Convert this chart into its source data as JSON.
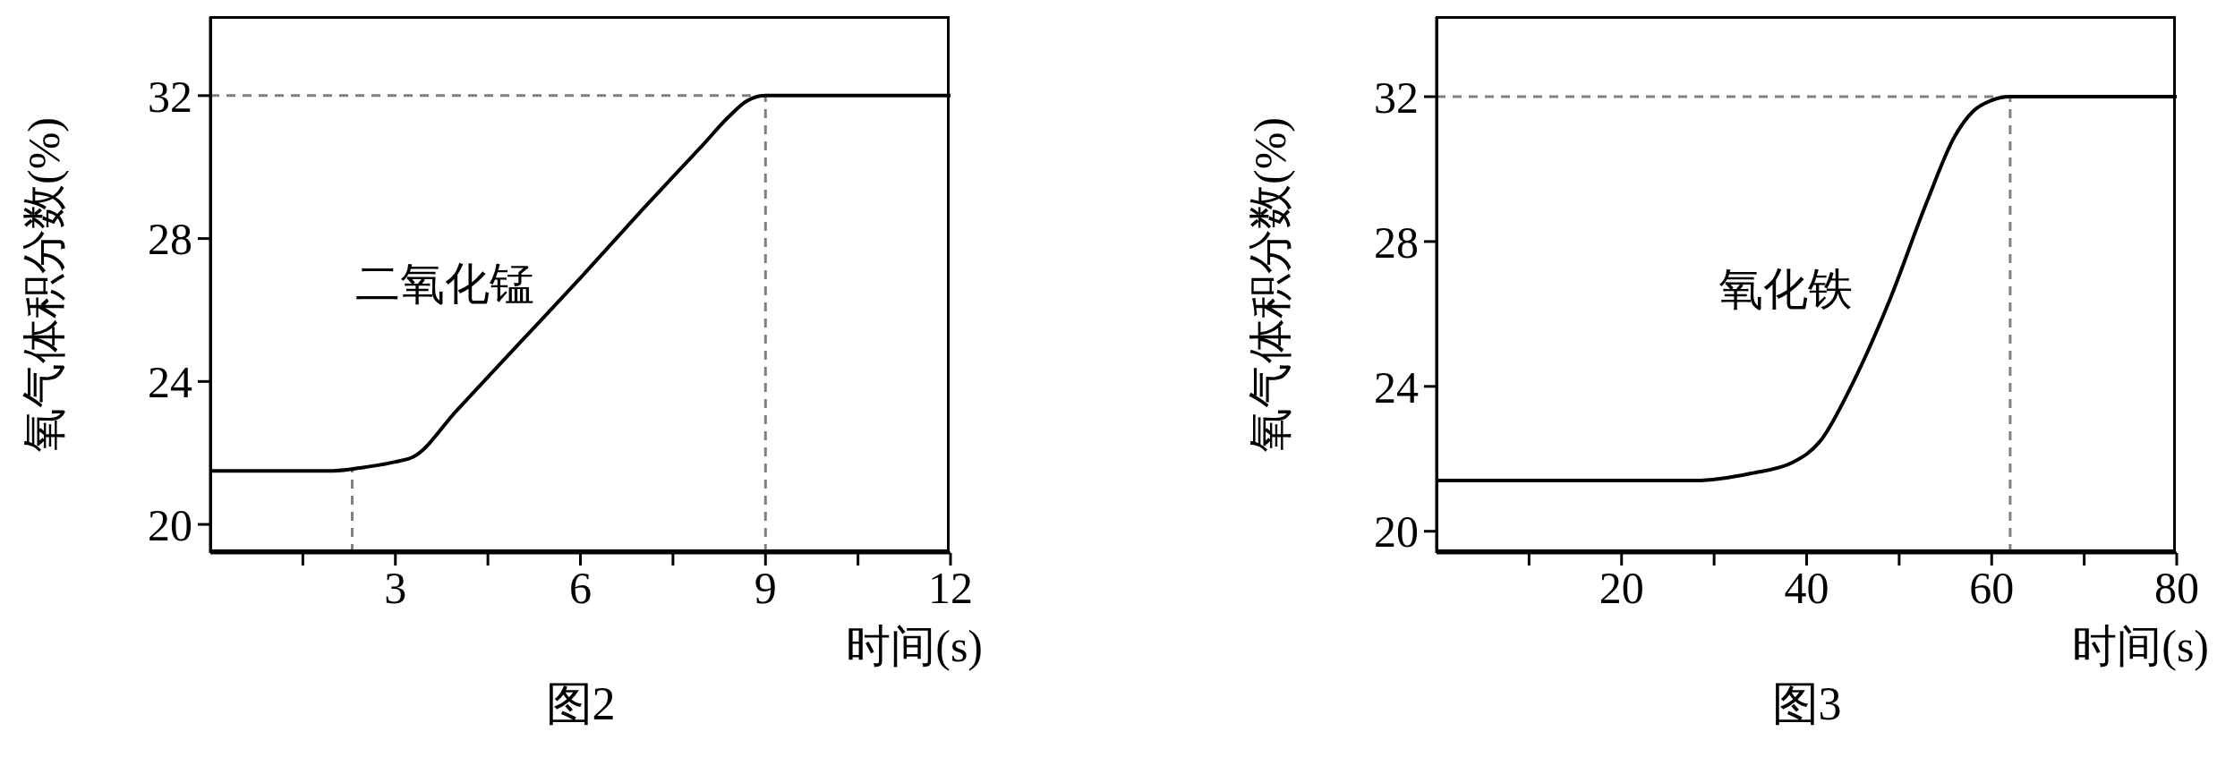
{
  "chart_data": [
    {
      "type": "line",
      "title": "图2",
      "xlabel": "时间(s)",
      "ylabel": "氧气体积分数(%)",
      "xlim": [
        0,
        12
      ],
      "ylim": [
        19.2,
        34.2
      ],
      "xticks": [
        {
          "value": 1.5,
          "label": null
        },
        3,
        {
          "value": 4.5,
          "label": null
        },
        6,
        {
          "value": 7.5,
          "label": null
        },
        9,
        {
          "value": 10.5,
          "label": null
        },
        12
      ],
      "yticks": [
        20,
        24,
        28,
        32
      ],
      "marker": "none",
      "line_style": "solid",
      "series": [
        {
          "name": "二氧化锰",
          "color": "#000000",
          "x": [
            0,
            1,
            2,
            2.5,
            3,
            3.3,
            4,
            5,
            6,
            7,
            8,
            8.4,
            8.7,
            9,
            12
          ],
          "values": [
            21.5,
            21.5,
            21.5,
            21.6,
            21.75,
            21.9,
            23.2,
            25.05,
            26.9,
            28.8,
            30.65,
            31.4,
            31.85,
            32,
            32
          ]
        }
      ],
      "ref_lines": [
        {
          "axis": "y",
          "value": 32,
          "color": "#808080",
          "line_style": "dashed"
        },
        {
          "axis": "x",
          "value": 9,
          "color": "#808080",
          "line_style": "dashed"
        },
        {
          "axis": "x",
          "value": 2.3,
          "color": "#808080",
          "line_style": "dashed"
        }
      ]
    },
    {
      "type": "line",
      "title": "图3",
      "xlabel": "时间(s)",
      "ylabel": "氧气体积分数(%)",
      "xlim": [
        0,
        80
      ],
      "ylim": [
        19.4,
        34.2
      ],
      "xticks": [
        {
          "value": 10,
          "label": null
        },
        20,
        {
          "value": 30,
          "label": null
        },
        40,
        {
          "value": 50,
          "label": null
        },
        60,
        {
          "value": 70,
          "label": null
        },
        80
      ],
      "yticks": [
        20,
        24,
        28,
        32
      ],
      "marker": "none",
      "line_style": "solid",
      "series": [
        {
          "name": "氧化铁",
          "color": "#000000",
          "x": [
            0,
            28,
            34,
            38.5,
            41.5,
            45,
            49,
            53,
            56,
            58,
            60,
            62,
            80
          ],
          "values": [
            21.4,
            21.4,
            21.6,
            21.9,
            22.5,
            24.1,
            26.4,
            29.1,
            30.9,
            31.6,
            31.9,
            32,
            32
          ]
        }
      ],
      "ref_lines": [
        {
          "axis": "y",
          "value": 32,
          "color": "#808080",
          "line_style": "dashed"
        },
        {
          "axis": "x",
          "value": 62,
          "color": "#808080",
          "line_style": "dashed"
        }
      ]
    }
  ]
}
